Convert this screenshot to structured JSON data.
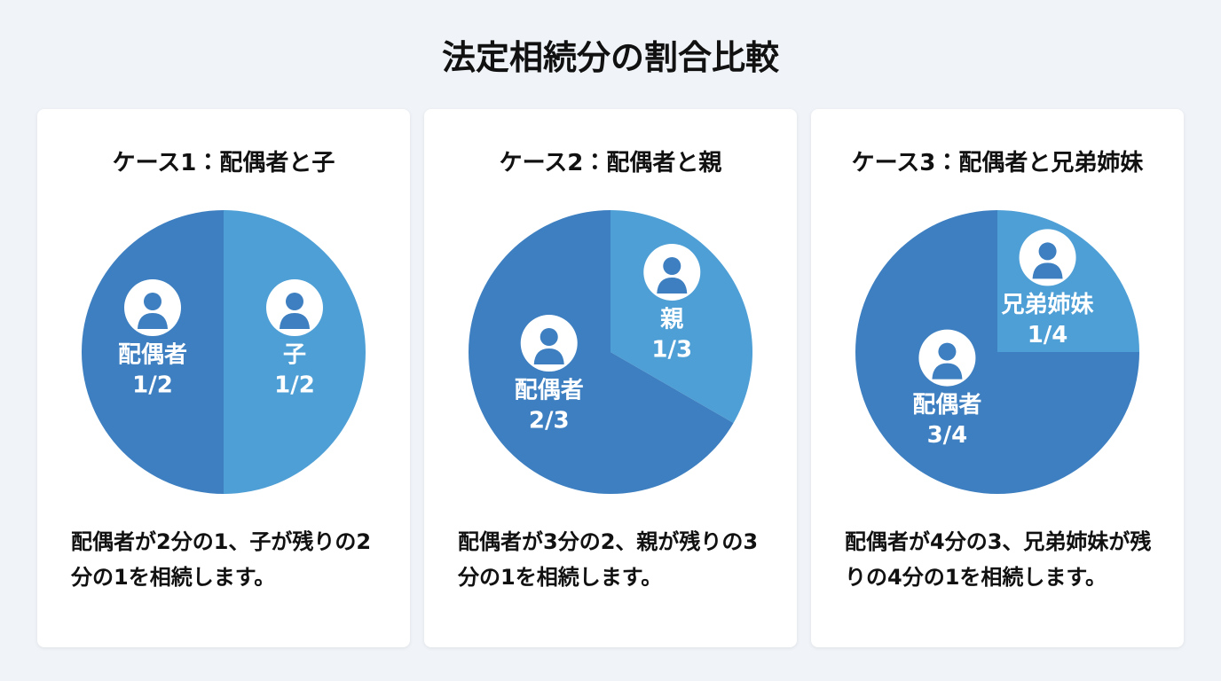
{
  "title": "法定相続分の割合比較",
  "chart_data": [
    {
      "type": "pie",
      "title": "ケース1：配偶者と子",
      "categories": [
        "配偶者",
        "子"
      ],
      "values": [
        0.5,
        0.5
      ],
      "value_labels": [
        "1/2",
        "1/2"
      ],
      "colors": [
        "#3d7fc0",
        "#4e9fd6"
      ],
      "description": "配偶者が2分の1、子が残りの2分の1を相続します。"
    },
    {
      "type": "pie",
      "title": "ケース2：配偶者と親",
      "categories": [
        "配偶者",
        "親"
      ],
      "values": [
        0.6667,
        0.3333
      ],
      "value_labels": [
        "2/3",
        "1/3"
      ],
      "colors": [
        "#3d7fc0",
        "#4e9fd6"
      ],
      "description": "配偶者が3分の2、親が残りの3分の1を相続します。"
    },
    {
      "type": "pie",
      "title": "ケース3：配偶者と兄弟姉妹",
      "categories": [
        "配偶者",
        "兄弟姉妹"
      ],
      "values": [
        0.75,
        0.25
      ],
      "value_labels": [
        "3/4",
        "1/4"
      ],
      "colors": [
        "#3d7fc0",
        "#4e9fd6"
      ],
      "description": "配偶者が4分の3、兄弟姉妹が残りの4分の1を相続します。"
    }
  ]
}
